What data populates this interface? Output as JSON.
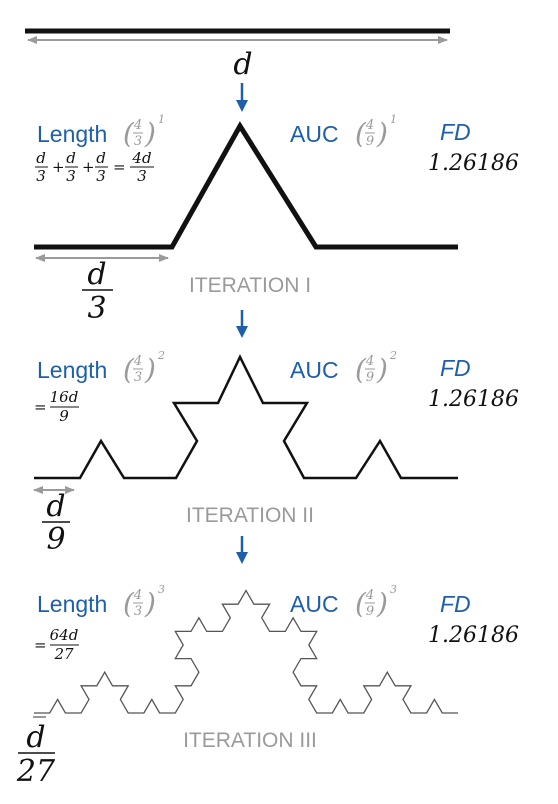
{
  "top": {
    "d_label": "d"
  },
  "iteration1": {
    "length_label": "Length",
    "length_ratio_num": "4",
    "length_ratio_den": "3",
    "length_exp": "1",
    "auc_label": "AUC",
    "auc_ratio_num": "4",
    "auc_ratio_den": "9",
    "auc_exp": "1",
    "fd_label": "FD",
    "fd_value": "1.26186",
    "sum_term": "d",
    "sum_den": "3",
    "sum_result_num": "4d",
    "sum_result_den": "3",
    "seg_num": "d",
    "seg_den": "3",
    "caption": "ITERATION I"
  },
  "iteration2": {
    "length_label": "Length",
    "length_ratio_num": "4",
    "length_ratio_den": "3",
    "length_exp": "2",
    "auc_label": "AUC",
    "auc_ratio_num": "4",
    "auc_ratio_den": "9",
    "auc_exp": "2",
    "fd_label": "FD",
    "fd_value": "1.26186",
    "len_num": "16d",
    "len_den": "9",
    "seg_num": "d",
    "seg_den": "9",
    "caption": "ITERATION II"
  },
  "iteration3": {
    "length_label": "Length",
    "length_ratio_num": "4",
    "length_ratio_den": "3",
    "length_exp": "3",
    "auc_label": "AUC",
    "auc_ratio_num": "4",
    "auc_ratio_den": "9",
    "auc_exp": "3",
    "fd_label": "FD",
    "fd_value": "1.26186",
    "len_num": "64d",
    "len_den": "27",
    "seg_num": "d",
    "seg_den": "27",
    "caption": "ITERATION III"
  },
  "colors": {
    "blue": "#1f5fa8",
    "gray": "#9a9a9a",
    "black": "#111111"
  }
}
